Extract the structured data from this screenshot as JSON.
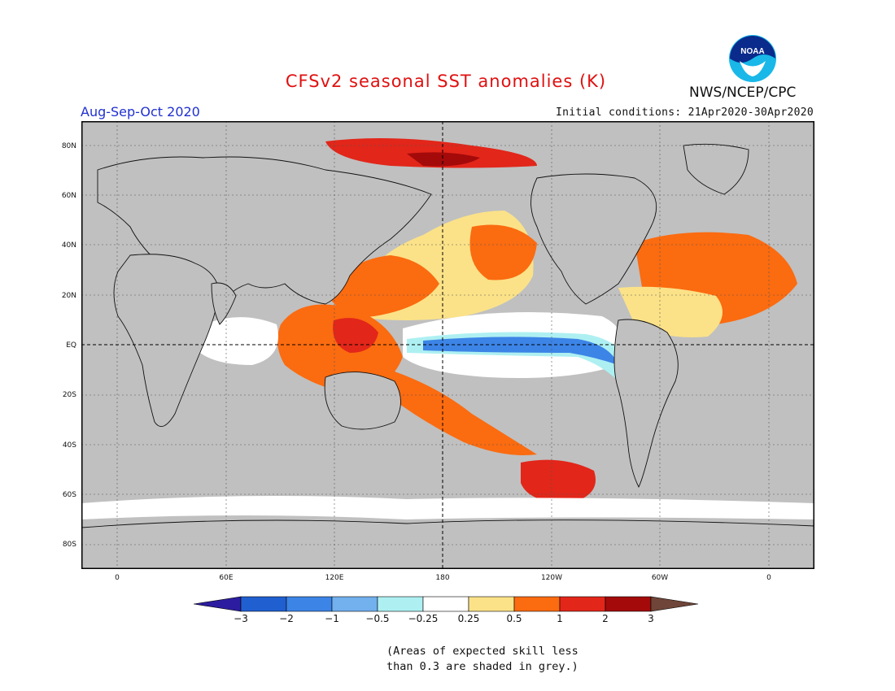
{
  "header": {
    "title": "CFSv2 seasonal SST anomalies (K)",
    "agency": "NWS/NCEP/CPC",
    "season": "Aug-Sep-Oct 2020",
    "initial_conditions": "Initial conditions: 21Apr2020-30Apr2020",
    "logo_text": "NOAA"
  },
  "map": {
    "lat_labels": [
      "80N",
      "60N",
      "40N",
      "20N",
      "EQ",
      "20S",
      "40S",
      "60S",
      "80S"
    ],
    "lon_labels": [
      "0",
      "60E",
      "120E",
      "180",
      "120W",
      "60W",
      "0"
    ],
    "mask_color": "#c0c0c0"
  },
  "colorbar": {
    "labels": [
      "−3",
      "−2",
      "−1",
      "−0.5",
      "−0.25",
      "0.25",
      "0.5",
      "1",
      "2",
      "3"
    ],
    "colors": [
      "#2c1da0",
      "#1f5fd0",
      "#3c84e6",
      "#72b0ee",
      "#aef0f2",
      "#ffffff",
      "#fbe288",
      "#fb6b10",
      "#e2261a",
      "#a40a0a",
      "#6e4538"
    ]
  },
  "note": {
    "line1": "(Areas of expected skill less",
    "line2": "than 0.3 are shaded in grey.)"
  }
}
